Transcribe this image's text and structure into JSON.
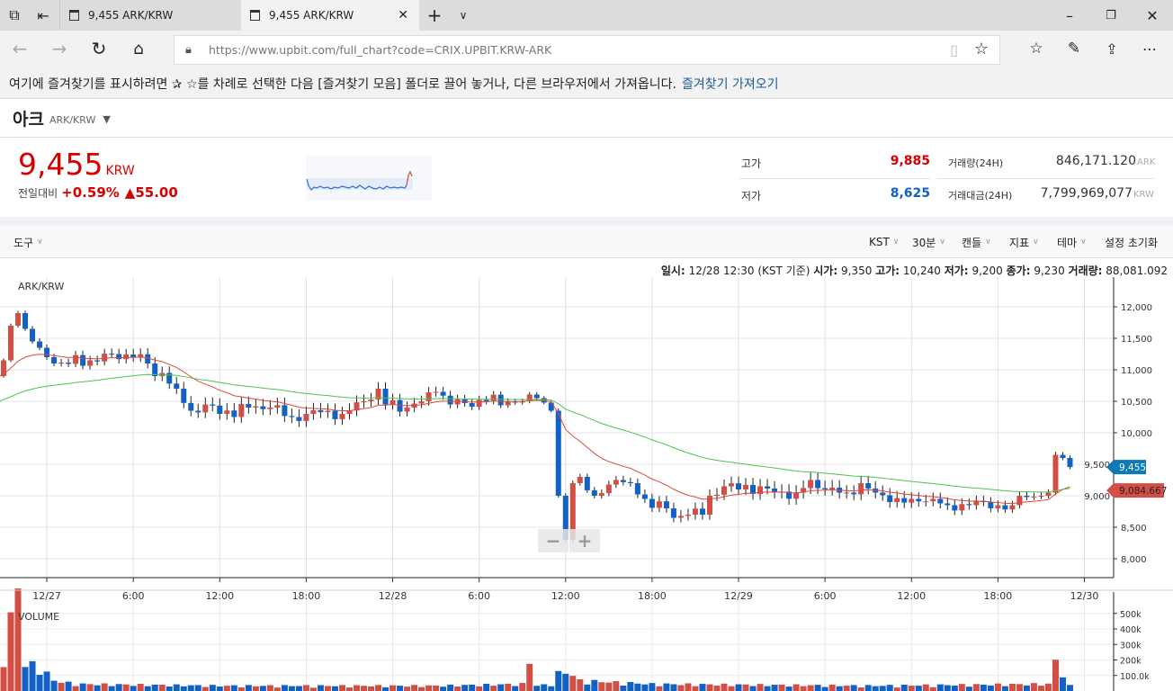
{
  "browser": {
    "tabs": [
      {
        "label": "9,455 ARK/KRW"
      },
      {
        "label": "9,455 ARK/KRW"
      }
    ],
    "url": "https://www.upbit.com/full_chart?code=CRIX.UPBIT.KRW-ARK",
    "favorites_message": "여기에 즐겨찾기를 표시하려면 ✰ ☆를 차례로 선택한 다음 [즐겨찾기 모음] 폴더로 끌어 놓거나, 다른 브라우저에서 가져옵니다.",
    "favorites_link": "즐겨찾기 가져오기"
  },
  "coin": {
    "name": "아크",
    "pair": "ARK/KRW"
  },
  "price": {
    "value": "9,455",
    "unit": "KRW",
    "change_label": "전일대비",
    "change_pct": "+0.59%",
    "change_abs": "▲55.00"
  },
  "stats": {
    "high_label": "고가",
    "high": "9,885",
    "low_label": "저가",
    "low": "8,625",
    "volume_label": "거래량(24H)",
    "volume": "846,171.120",
    "volume_unit": "ARK",
    "amount_label": "거래대금(24H)",
    "amount": "7,799,969,077",
    "amount_unit": "KRW"
  },
  "toolbar": {
    "tools": "도구",
    "timezone": "KST",
    "interval": "30분",
    "chart_type": "캔들",
    "indicator": "지표",
    "theme": "테마",
    "reset": "설정 초기화"
  },
  "info": {
    "date_label": "일시:",
    "date": "12/28 12:30 (KST 기준)",
    "open_label": "시가:",
    "open": "9,350",
    "high_label": "고가:",
    "high": "10,240",
    "low_label": "저가:",
    "low": "9,200",
    "close_label": "종가:",
    "close": "9,230",
    "vol_label": "거래량:",
    "vol": "88,081.092"
  },
  "zoom": {
    "minus": "−",
    "plus": "+"
  },
  "colors": {
    "up": "#d24f45",
    "down": "#1261c4",
    "ma_short": "#e0473c",
    "ma_long": "#4cc44c",
    "price_tag": "#0a7ab8"
  },
  "chart_data": {
    "type": "candlestick",
    "title": "ARK/KRW",
    "volume_title": "VOLUME",
    "interval_minutes": 30,
    "ylim": [
      7700,
      12400
    ],
    "y_ticks": [
      8000,
      8500,
      9000,
      9500,
      10000,
      10500,
      11000,
      11500,
      12000
    ],
    "y_tick_labels": [
      "8,000",
      "8,500",
      "9,000",
      "9,500",
      "10,000",
      "10,500",
      "11,000",
      "11,500",
      "12,000"
    ],
    "x_ticks": [
      {
        "candle": 6,
        "label": "12/27"
      },
      {
        "candle": 18,
        "label": "6:00"
      },
      {
        "candle": 30,
        "label": "12:00"
      },
      {
        "candle": 42,
        "label": "18:00"
      },
      {
        "candle": 54,
        "label": "12/28"
      },
      {
        "candle": 66,
        "label": "6:00"
      },
      {
        "candle": 78,
        "label": "12:00"
      },
      {
        "candle": 90,
        "label": "18:00"
      },
      {
        "candle": 102,
        "label": "12/29"
      },
      {
        "candle": 114,
        "label": "6:00"
      },
      {
        "candle": 126,
        "label": "12:00"
      },
      {
        "candle": 138,
        "label": "18:00"
      },
      {
        "candle": 150,
        "label": "12/30"
      }
    ],
    "close_keypoints": [
      [
        0,
        11150
      ],
      [
        1,
        11700
      ],
      [
        2,
        11900
      ],
      [
        3,
        11650
      ],
      [
        4,
        11450
      ],
      [
        5,
        11350
      ],
      [
        6,
        11200
      ],
      [
        7,
        11100
      ],
      [
        12,
        11150
      ],
      [
        15,
        11250
      ],
      [
        18,
        11200
      ],
      [
        20,
        11100
      ],
      [
        21,
        10900
      ],
      [
        22,
        10950
      ],
      [
        24,
        10700
      ],
      [
        26,
        10350
      ],
      [
        28,
        10450
      ],
      [
        30,
        10300
      ],
      [
        34,
        10400
      ],
      [
        37,
        10400
      ],
      [
        40,
        10250
      ],
      [
        42,
        10300
      ],
      [
        45,
        10350
      ],
      [
        47,
        10300
      ],
      [
        50,
        10500
      ],
      [
        52,
        10700
      ],
      [
        53,
        10450
      ],
      [
        56,
        10400
      ],
      [
        58,
        10500
      ],
      [
        60,
        10650
      ],
      [
        62,
        10450
      ],
      [
        67,
        10500
      ],
      [
        72,
        10500
      ],
      [
        74,
        10550
      ],
      [
        76,
        10350
      ],
      [
        77,
        9000
      ],
      [
        78,
        8300
      ],
      [
        79,
        9200
      ],
      [
        80,
        9300
      ],
      [
        82,
        9000
      ],
      [
        85,
        9250
      ],
      [
        87,
        9200
      ],
      [
        89,
        8950
      ],
      [
        92,
        8800
      ],
      [
        93,
        8650
      ],
      [
        95,
        8700
      ],
      [
        97,
        8700
      ],
      [
        98,
        9000
      ],
      [
        100,
        9150
      ],
      [
        102,
        9100
      ],
      [
        105,
        9150
      ],
      [
        107,
        9050
      ],
      [
        110,
        9050
      ],
      [
        112,
        9250
      ],
      [
        114,
        9100
      ],
      [
        117,
        9050
      ],
      [
        119,
        9200
      ],
      [
        121,
        9050
      ],
      [
        123,
        8900
      ],
      [
        126,
        8950
      ],
      [
        129,
        8950
      ],
      [
        131,
        8850
      ],
      [
        134,
        8850
      ],
      [
        136,
        8900
      ],
      [
        138,
        8850
      ],
      [
        140,
        8850
      ],
      [
        141,
        9000
      ],
      [
        144,
        9000
      ],
      [
        145,
        9050
      ],
      [
        146,
        9650
      ],
      [
        147,
        9600
      ],
      [
        148,
        9455
      ]
    ],
    "volume_keypoints_k": [
      [
        0,
        220
      ],
      [
        1,
        400
      ],
      [
        2,
        700
      ],
      [
        3,
        150
      ],
      [
        4,
        150
      ],
      [
        5,
        140
      ],
      [
        6,
        100
      ],
      [
        7,
        60
      ],
      [
        10,
        40
      ],
      [
        30,
        30
      ],
      [
        60,
        30
      ],
      [
        72,
        40
      ],
      [
        73,
        180
      ],
      [
        74,
        30
      ],
      [
        76,
        40
      ],
      [
        77,
        100
      ],
      [
        78,
        110
      ],
      [
        79,
        90
      ],
      [
        80,
        60
      ],
      [
        90,
        40
      ],
      [
        120,
        30
      ],
      [
        145,
        40
      ],
      [
        146,
        170
      ],
      [
        147,
        100
      ],
      [
        148,
        30
      ]
    ],
    "volume_ticks": [
      "500k",
      "400k",
      "300k",
      "200k",
      "100.0k"
    ],
    "volume_tick_values_k": [
      500,
      400,
      300,
      200,
      100
    ],
    "ma_short": {
      "period": 15,
      "seed": 10900
    },
    "ma_long": {
      "period": 50,
      "seed": 10500
    },
    "last_price_label": "9,455",
    "last_price": 9455,
    "ma_label": "9,084.667",
    "ma_value": 9084.667
  }
}
